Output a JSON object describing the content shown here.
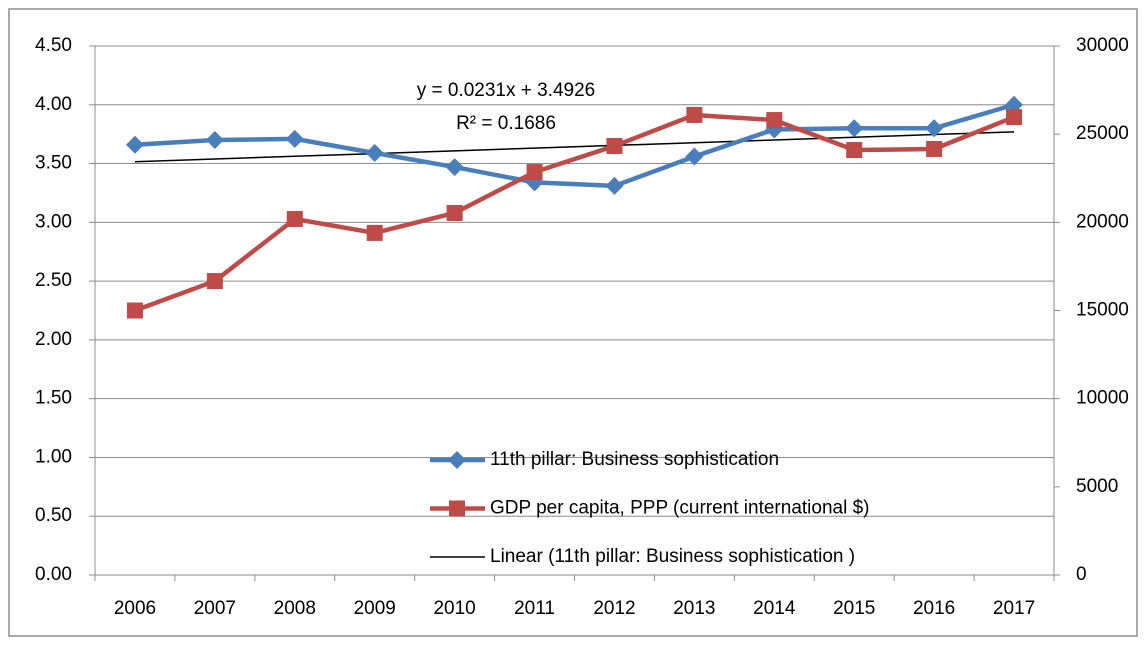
{
  "chart_data": {
    "type": "line",
    "categories": [
      "2006",
      "2007",
      "2008",
      "2009",
      "2010",
      "2011",
      "2012",
      "2013",
      "2014",
      "2015",
      "2016",
      "2017"
    ],
    "series": [
      {
        "name": "11th pillar: Business sophistication",
        "color": "#4a7ebb",
        "marker": "diamond",
        "values": [
          3.66,
          3.7,
          3.71,
          3.59,
          3.47,
          3.34,
          3.31,
          3.56,
          3.79,
          3.8,
          3.8,
          4.0
        ]
      },
      {
        "name": "GDP per capita, PPP (current international $)",
        "color": "#be4b48",
        "marker": "square",
        "axis": "y2",
        "values": [
          15000,
          16670,
          20190,
          19400,
          20530,
          22850,
          24330,
          26090,
          25800,
          24100,
          24160,
          25970
        ]
      },
      {
        "name": "Linear (11th pillar: Business sophistication )",
        "color": "#000000",
        "marker": "none",
        "values": [
          3.5157,
          3.5388,
          3.5619,
          3.585,
          3.6081,
          3.6312,
          3.6543,
          3.6774,
          3.7005,
          3.7236,
          3.7467,
          3.7698
        ]
      }
    ],
    "annotations": [
      "y = 0.0231x + 3.4926",
      "R² = 0.1686"
    ],
    "ylim": [
      0,
      4.5
    ],
    "yticks": [
      {
        "value": 0,
        "label": "0.00"
      },
      {
        "value": 0.5,
        "label": "0.50"
      },
      {
        "value": 1,
        "label": "1.00"
      },
      {
        "value": 1.5,
        "label": "1.50"
      },
      {
        "value": 2,
        "label": "2.00"
      },
      {
        "value": 2.5,
        "label": "2.50"
      },
      {
        "value": 3,
        "label": "3.00"
      },
      {
        "value": 3.5,
        "label": "3.50"
      },
      {
        "value": 4,
        "label": "4.00"
      },
      {
        "value": 4.5,
        "label": "4.50"
      }
    ],
    "y2lim": [
      0,
      30000
    ],
    "y2ticks": [
      0,
      5000,
      10000,
      15000,
      20000,
      25000,
      30000
    ],
    "grid": true
  }
}
